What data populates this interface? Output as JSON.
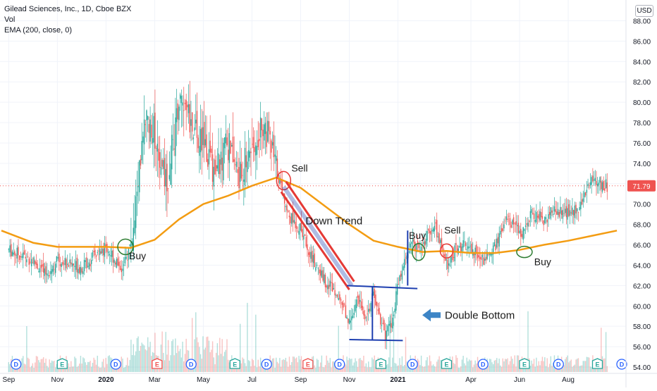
{
  "legend": {
    "symbol_line": "Gilead Sciences, Inc., 1D, Cboe BZX",
    "vol_label": "Vol",
    "ema_label": "EMA (200, close, 0)"
  },
  "currency": "USD",
  "last_price": "71.79",
  "colors": {
    "up": "#26a69a",
    "down": "#ef5350",
    "ema": "#f39c12",
    "annotation_red": "#e53935",
    "annotation_blue": "#1e3fb0",
    "annotation_green": "#2e7d32",
    "arrow": "#3d85c6",
    "last_price_tag": "#ef5350"
  },
  "chart_data": {
    "type": "candlestick",
    "y_ticks": [
      "54.00",
      "56.00",
      "58.00",
      "60.00",
      "62.00",
      "64.00",
      "66.00",
      "68.00",
      "70.00",
      "72.00",
      "74.00",
      "76.00",
      "78.00",
      "80.00",
      "82.00",
      "84.00",
      "86.00",
      "88.00"
    ],
    "ylim": [
      54,
      89
    ],
    "x_tick_labels": [
      "Sep",
      "Nov",
      "2020",
      "Mar",
      "May",
      "Jul",
      "Sep",
      "Nov",
      "2021",
      "Apr",
      "Jun",
      "Aug"
    ],
    "x_tick_months": [
      0,
      2,
      4,
      6,
      8,
      10,
      12,
      14,
      16,
      19,
      21,
      23
    ],
    "x_month_range": [
      -0.3,
      25.2
    ],
    "price_path": [
      [
        0,
        65.5
      ],
      [
        1,
        64.5
      ],
      [
        1.5,
        63.0
      ],
      [
        2,
        64.5
      ],
      [
        3,
        63.8
      ],
      [
        4,
        65.8
      ],
      [
        4.7,
        63.5
      ],
      [
        5,
        66.0
      ],
      [
        5.3,
        72.0
      ],
      [
        5.6,
        78.0
      ],
      [
        6,
        77.0
      ],
      [
        6.5,
        72.0
      ],
      [
        7,
        80.0
      ],
      [
        7.5,
        78.0
      ],
      [
        8,
        76.0
      ],
      [
        8.5,
        73.0
      ],
      [
        9,
        76.0
      ],
      [
        9.5,
        72.5
      ],
      [
        10,
        76.0
      ],
      [
        10.5,
        78.0
      ],
      [
        11,
        73.5
      ],
      [
        11.5,
        69.0
      ],
      [
        12,
        67.5
      ],
      [
        12.5,
        64.5
      ],
      [
        13,
        62.5
      ],
      [
        13.5,
        61.5
      ],
      [
        14,
        58.5
      ],
      [
        14.3,
        60.5
      ],
      [
        14.7,
        59.0
      ],
      [
        15,
        61.0
      ],
      [
        15.5,
        57.0
      ],
      [
        15.8,
        59.0
      ],
      [
        16,
        62.0
      ],
      [
        16.5,
        66.0
      ],
      [
        17,
        66.0
      ],
      [
        17.5,
        68.0
      ],
      [
        18,
        64.0
      ],
      [
        18.5,
        66.0
      ],
      [
        19,
        65.5
      ],
      [
        19.5,
        64.5
      ],
      [
        20,
        66.0
      ],
      [
        20.5,
        68.5
      ],
      [
        21,
        67.0
      ],
      [
        21.5,
        69.0
      ],
      [
        22,
        68.5
      ],
      [
        22.5,
        69.5
      ],
      [
        23,
        69.0
      ],
      [
        23.5,
        70.0
      ],
      [
        24,
        72.5
      ],
      [
        24.5,
        71.8
      ]
    ],
    "ema_200": [
      [
        -0.3,
        67.4
      ],
      [
        1,
        66.2
      ],
      [
        2,
        65.8
      ],
      [
        3,
        65.8
      ],
      [
        4,
        65.8
      ],
      [
        5,
        65.7
      ],
      [
        6,
        66.5
      ],
      [
        7,
        68.5
      ],
      [
        8,
        70.0
      ],
      [
        9,
        70.8
      ],
      [
        10,
        71.8
      ],
      [
        11,
        72.6
      ],
      [
        12,
        71.6
      ],
      [
        13,
        69.8
      ],
      [
        14,
        68.0
      ],
      [
        15,
        66.4
      ],
      [
        16,
        65.8
      ],
      [
        17,
        65.3
      ],
      [
        18,
        65.4
      ],
      [
        19,
        65.2
      ],
      [
        20,
        65.2
      ],
      [
        21,
        65.5
      ],
      [
        22,
        66.0
      ],
      [
        23,
        66.4
      ],
      [
        24,
        66.9
      ],
      [
        25,
        67.4
      ]
    ],
    "volume_note": "volume histogram along the bottom",
    "event_markers": [
      {
        "type": "D",
        "month": 0.3
      },
      {
        "type": "E",
        "month": 2.2
      },
      {
        "type": "D",
        "month": 4.4
      },
      {
        "type": "E",
        "month": 6.1
      },
      {
        "type": "D",
        "month": 7.5
      },
      {
        "type": "E",
        "month": 9.3
      },
      {
        "type": "D",
        "month": 10.6
      },
      {
        "type": "E",
        "month": 12.3
      },
      {
        "type": "D",
        "month": 13.6
      },
      {
        "type": "E",
        "month": 15.3
      },
      {
        "type": "D",
        "month": 16.6
      },
      {
        "type": "E",
        "month": 18.0
      },
      {
        "type": "D",
        "month": 19.5
      },
      {
        "type": "E",
        "month": 21.2
      },
      {
        "type": "D",
        "month": 22.6
      },
      {
        "type": "E",
        "month": 24.2
      },
      {
        "type": "D",
        "month": 25.2
      }
    ]
  },
  "annotations": {
    "buy_1": "Buy",
    "sell_1": "Sell",
    "down_trend": "Down Trend",
    "buy_2": "Buy",
    "sell_2": "Sell",
    "buy_3": "Buy",
    "double_bottom": "Double Bottom"
  }
}
